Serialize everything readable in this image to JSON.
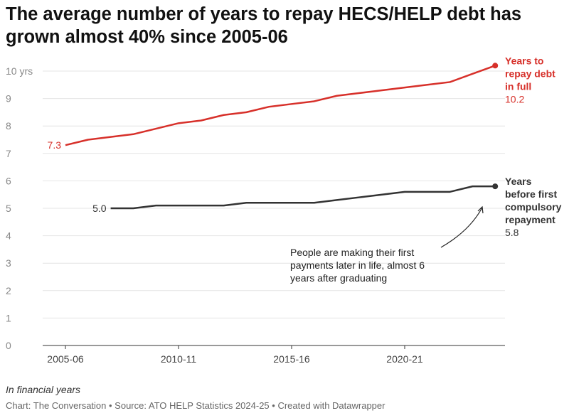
{
  "title": "The average number of years to repay HECS/HELP debt has grown almost 40% since 2005-06",
  "unit_note": "In financial years",
  "source": "Chart: The Conversation • Source: ATO HELP Statistics 2024-25 • Created with Datawrapper",
  "chart_data": {
    "type": "line",
    "x": [
      "2005-06",
      "2006-07",
      "2007-08",
      "2008-09",
      "2009-10",
      "2010-11",
      "2011-12",
      "2012-13",
      "2013-14",
      "2014-15",
      "2015-16",
      "2016-17",
      "2017-18",
      "2018-19",
      "2019-20",
      "2020-21",
      "2021-22",
      "2022-23",
      "2023-24",
      "2024-25"
    ],
    "x_tick_labels": [
      "2005-06",
      "2010-11",
      "2015-16",
      "2020-21"
    ],
    "y_tick_labels": [
      "0",
      "1",
      "2",
      "3",
      "4",
      "5",
      "6",
      "7",
      "8",
      "9",
      "10 yrs"
    ],
    "ylim": [
      0,
      10
    ],
    "grid": true,
    "series": [
      {
        "name": "Years to repay debt in full",
        "color": "#d7302a",
        "start_label": "7.3",
        "end_label": "10.2",
        "values": [
          7.3,
          7.5,
          7.6,
          7.7,
          7.9,
          8.1,
          8.2,
          8.4,
          8.5,
          8.7,
          8.8,
          8.9,
          9.1,
          9.2,
          9.3,
          9.4,
          9.5,
          9.6,
          9.9,
          10.2
        ]
      },
      {
        "name": "Years before first compulsory repayment",
        "color": "#333333",
        "start_label": "5.0",
        "end_label": "5.8",
        "values": [
          null,
          null,
          5.0,
          5.0,
          5.1,
          5.1,
          5.1,
          5.1,
          5.2,
          5.2,
          5.2,
          5.2,
          5.3,
          5.4,
          5.5,
          5.6,
          5.6,
          5.6,
          5.8,
          5.8
        ]
      }
    ],
    "annotation": "People are making their first payments later in life, almost 6 years after graduating"
  }
}
